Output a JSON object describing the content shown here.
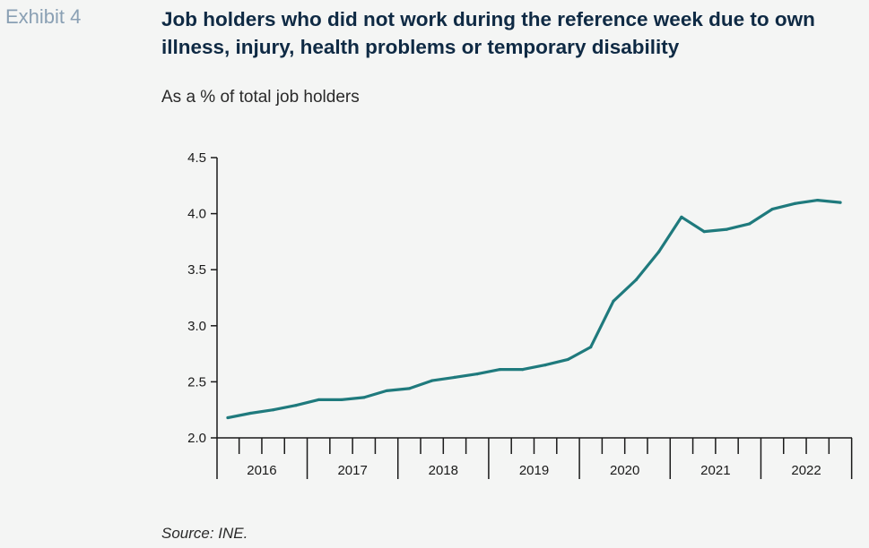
{
  "header": {
    "exhibit": "Exhibit 4",
    "title": "Job holders who did not work during the reference week due to own illness, injury, health problems or temporary disability",
    "subtitle": "As a % of total job holders",
    "source": "Source: INE."
  },
  "colors": {
    "line": "#1f7a7d",
    "axis": "#1a1a1a"
  },
  "chart_data": {
    "type": "line",
    "title": "Job holders who did not work during the reference week due to own illness, injury, health problems or temporary disability",
    "subtitle": "As a % of total job holders",
    "xlabel": "",
    "ylabel": "",
    "ylim": [
      2.0,
      4.5
    ],
    "yticks": [
      "2.0",
      "2.5",
      "3.0",
      "3.5",
      "4.0",
      "4.5"
    ],
    "year_labels": [
      "2016",
      "2017",
      "2018",
      "2019",
      "2020",
      "2021",
      "2022"
    ],
    "grid": false,
    "x": [
      "2016 Q1",
      "2016 Q2",
      "2016 Q3",
      "2016 Q4",
      "2017 Q1",
      "2017 Q2",
      "2017 Q3",
      "2017 Q4",
      "2018 Q1",
      "2018 Q2",
      "2018 Q3",
      "2018 Q4",
      "2019 Q1",
      "2019 Q2",
      "2019 Q3",
      "2019 Q4",
      "2020 Q1",
      "2020 Q2",
      "2020 Q3",
      "2020 Q4",
      "2021 Q1",
      "2021 Q2",
      "2021 Q3",
      "2021 Q4",
      "2022 Q1",
      "2022 Q2",
      "2022 Q3",
      "2022 Q4"
    ],
    "values": [
      2.18,
      2.22,
      2.25,
      2.29,
      2.34,
      2.34,
      2.36,
      2.42,
      2.44,
      2.51,
      2.54,
      2.57,
      2.61,
      2.61,
      2.65,
      2.7,
      2.81,
      3.22,
      3.41,
      3.66,
      3.97,
      3.84,
      3.86,
      3.91,
      4.04,
      4.09,
      4.12,
      4.1
    ]
  }
}
